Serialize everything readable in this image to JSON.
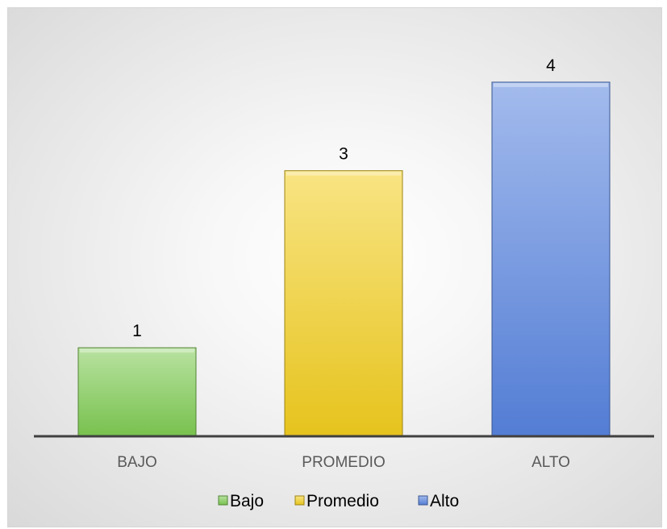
{
  "chart_data": {
    "type": "bar",
    "categories": [
      "BAJO",
      "PROMEDIO",
      "ALTO"
    ],
    "values": [
      1,
      3,
      4
    ],
    "legend": [
      "Bajo",
      "Promedio",
      "Alto"
    ],
    "legend_position": "bottom",
    "colors": [
      "#7ecb52",
      "#f2cd1e",
      "#5784df"
    ],
    "ylim": [
      0,
      4.4
    ],
    "grid": false,
    "data_labels": true
  }
}
